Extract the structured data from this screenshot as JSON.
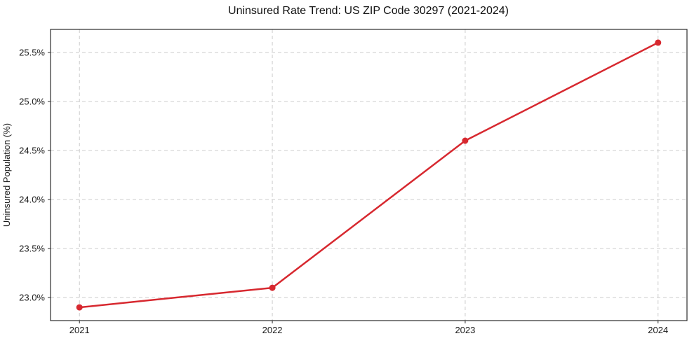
{
  "chart_data": {
    "type": "line",
    "title": "Uninsured Rate Trend: US ZIP Code 30297 (2021-2024)",
    "xlabel": "",
    "ylabel": "Uninsured Population (%)",
    "categories": [
      2021,
      2022,
      2023,
      2024
    ],
    "x_tick_labels": [
      "2021",
      "2022",
      "2023",
      "2024"
    ],
    "series": [
      {
        "name": "Uninsured Rate",
        "values": [
          22.9,
          23.1,
          24.6,
          25.6
        ]
      }
    ],
    "y_tick_values": [
      23.0,
      23.5,
      24.0,
      24.5,
      25.0,
      25.5
    ],
    "y_tick_labels": [
      "23.0%",
      "23.5%",
      "24.0%",
      "24.5%",
      "25.0%",
      "25.5%"
    ],
    "ylim": [
      22.765,
      25.735
    ],
    "xlim": [
      2020.85,
      2024.15
    ],
    "grid": "dashed-both-axes",
    "legend": "none",
    "colors": {
      "line": "#d7282f",
      "marker": "#d7282f",
      "gridline": "#cccccc",
      "spine": "#2b2b2b",
      "text": "#1a1a1a",
      "background": "#ffffff"
    }
  }
}
